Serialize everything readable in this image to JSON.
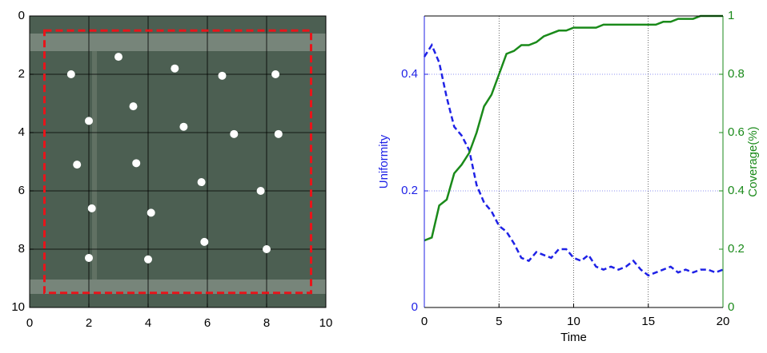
{
  "chart_data": [
    {
      "type": "scatter",
      "y_inverted": true,
      "grid": true,
      "color": "#ffffff",
      "boundary_color": "#e8141a",
      "boundary": [
        0.5,
        9.5
      ],
      "xlim": [
        0,
        10
      ],
      "ylim": [
        0,
        10
      ],
      "xticks": [
        0,
        2,
        4,
        6,
        8,
        10
      ],
      "yticks": [
        0,
        2,
        4,
        6,
        8,
        10
      ],
      "x": [
        1.4,
        3.0,
        4.9,
        6.5,
        8.3,
        3.5,
        2.0,
        5.2,
        6.9,
        8.4,
        1.6,
        3.6,
        5.8,
        7.8,
        2.1,
        4.1,
        5.9,
        8.0,
        2.0,
        4.0
      ],
      "values": [
        2.0,
        1.4,
        1.8,
        2.05,
        2.0,
        3.1,
        3.6,
        3.8,
        4.05,
        4.05,
        5.1,
        5.05,
        5.7,
        6.0,
        6.6,
        6.75,
        7.75,
        8.0,
        8.3,
        8.35
      ]
    },
    {
      "type": "line",
      "xlabel": "Time",
      "ylabel": "Uniformity",
      "y2label": "Coverage(%)",
      "grid": true,
      "xlim": [
        0,
        20
      ],
      "xticks": [
        0,
        5,
        10,
        15,
        20
      ],
      "ylim": [
        0,
        0.5
      ],
      "yticks": [
        0,
        0.2,
        0.4
      ],
      "y2lim": [
        0,
        1
      ],
      "y2ticks": [
        0,
        0.2,
        0.4,
        0.6,
        0.8,
        1
      ],
      "x": [
        0,
        0.5,
        1,
        1.5,
        2,
        2.5,
        3,
        3.5,
        4,
        4.5,
        5,
        5.5,
        6,
        6.5,
        7,
        7.5,
        8,
        8.5,
        9,
        9.5,
        10,
        10.5,
        11,
        11.5,
        12,
        12.5,
        13,
        13.5,
        14,
        14.5,
        15,
        15.5,
        16,
        16.5,
        17,
        17.5,
        18,
        18.5,
        19,
        19.5,
        20
      ],
      "series": [
        {
          "color": "#1f22e6",
          "style": "dashed",
          "axis": "y",
          "values": [
            0.43,
            0.45,
            0.42,
            0.36,
            0.31,
            0.295,
            0.27,
            0.21,
            0.18,
            0.165,
            0.14,
            0.13,
            0.11,
            0.085,
            0.08,
            0.095,
            0.09,
            0.085,
            0.1,
            0.1,
            0.085,
            0.08,
            0.09,
            0.07,
            0.065,
            0.07,
            0.065,
            0.07,
            0.08,
            0.065,
            0.055,
            0.06,
            0.065,
            0.07,
            0.06,
            0.065,
            0.06,
            0.065,
            0.065,
            0.06,
            0.065
          ]
        },
        {
          "color": "#1a8a1a",
          "style": "solid",
          "axis": "y2",
          "values": [
            0.23,
            0.24,
            0.35,
            0.37,
            0.46,
            0.49,
            0.53,
            0.6,
            0.69,
            0.73,
            0.8,
            0.87,
            0.88,
            0.9,
            0.9,
            0.91,
            0.93,
            0.94,
            0.95,
            0.95,
            0.96,
            0.96,
            0.96,
            0.96,
            0.97,
            0.97,
            0.97,
            0.97,
            0.97,
            0.97,
            0.97,
            0.97,
            0.98,
            0.98,
            0.99,
            0.99,
            0.99,
            1.0,
            1.0,
            1.0,
            1.0
          ]
        }
      ]
    }
  ]
}
